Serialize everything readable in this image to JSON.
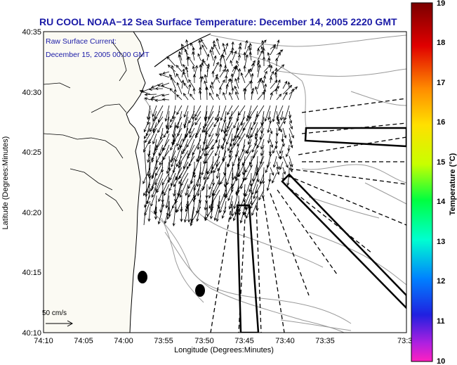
{
  "title": "RU COOL   NOAA−12  Sea Surface Temperature:  December 14, 2005 2220 GMT",
  "current_legend": {
    "line1": "Raw Surface Current:",
    "line2": "December 15, 2005 00:00 GMT"
  },
  "scale_label": "50 cm/s",
  "axes": {
    "xlabel": "Longitude (Degrees:Minutes)",
    "ylabel": "Latitude (Degrees:Minutes)",
    "x_ticks": [
      "74:10",
      "74:05",
      "74:00",
      "73:55",
      "73:50",
      "73:45",
      "73:40",
      "73:35",
      "73:3"
    ],
    "y_ticks": [
      "40:35",
      "40:30",
      "40:25",
      "40:20",
      "40:15",
      "40:10"
    ]
  },
  "colorbar": {
    "label": "Temperature (°C)",
    "ticks": [
      "19",
      "18",
      "17",
      "16",
      "15",
      "14",
      "13",
      "12",
      "11",
      "10"
    ],
    "min": 10,
    "max": 19
  },
  "colors": {
    "title": "#1a1aa6",
    "land_fill": "#fbfaf3",
    "coast": "#000000",
    "bathymetry": "#9a9a9a"
  }
}
